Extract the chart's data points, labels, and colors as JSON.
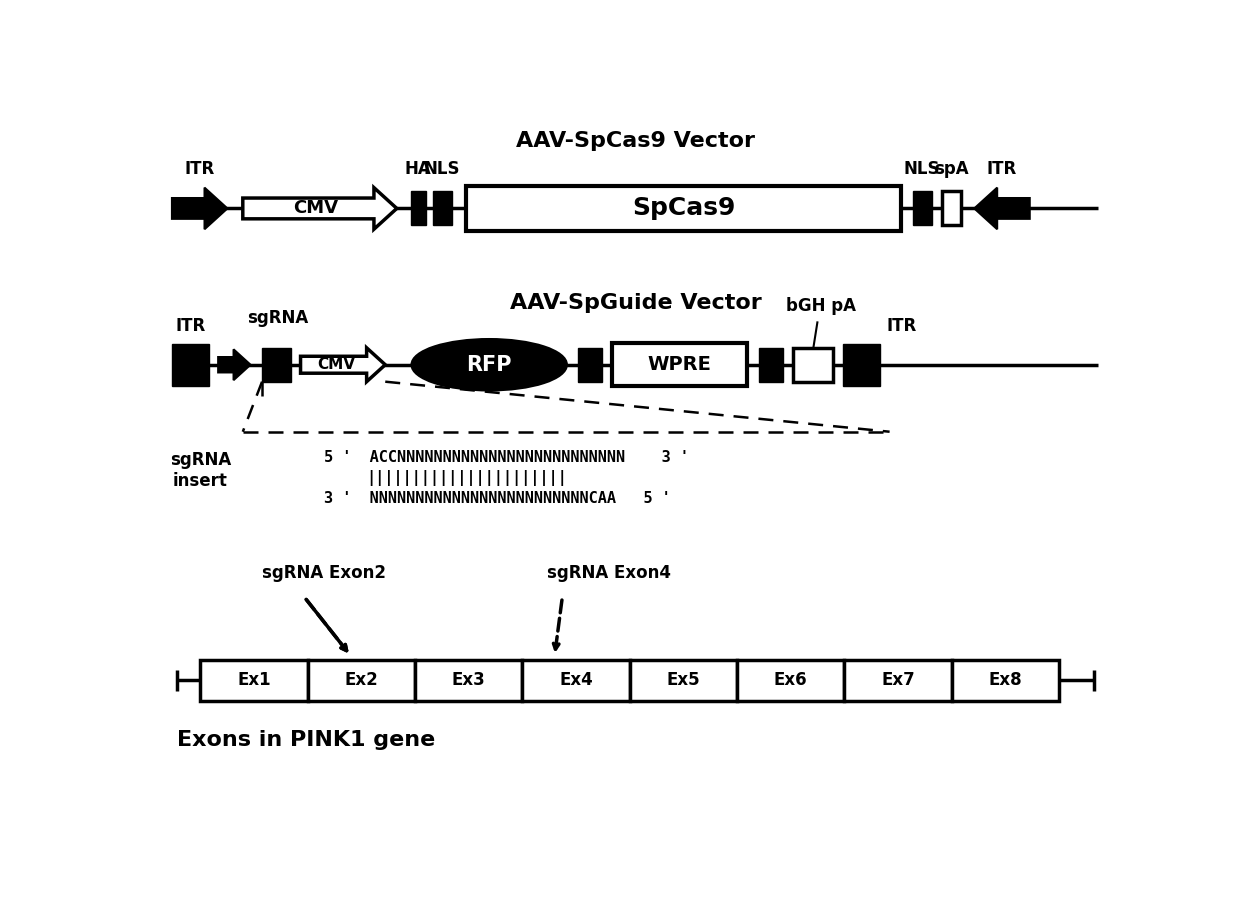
{
  "title1": "AAV-SpCas9 Vector",
  "title2": "AAV-SpGuide Vector",
  "title3": "Exons in PINK1 gene",
  "seq_top": "5 '  ACCNNNNNNNNNNNNNNNNNNNNNNNNN    3 '",
  "seq_mid": "      ||||||||||||||||||||||||",
  "seq_bot": "3 '  NNNNNNNNNNNNNNNNNNNNNNNNCAA   5 '",
  "sgrna_insert": "sgRNA\ninsert",
  "sgrna_exon2": "sgRNA Exon2",
  "sgrna_exon4": "sgRNA Exon4",
  "exons": [
    "Ex1",
    "Ex2",
    "Ex3",
    "Ex4",
    "Ex5",
    "Ex6",
    "Ex7",
    "Ex8"
  ],
  "black": "#000000",
  "white": "#ffffff",
  "bg": "#ffffff"
}
